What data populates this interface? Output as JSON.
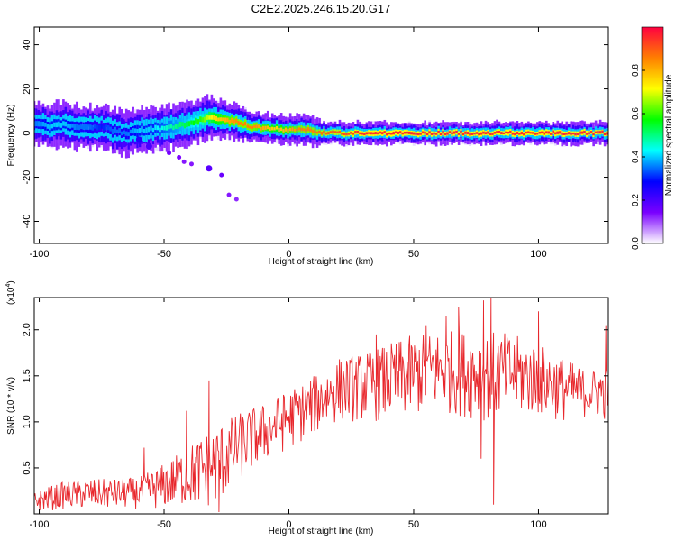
{
  "title": "C2E2.2025.246.15.20.G17",
  "chart_data": [
    {
      "type": "heatmap",
      "name": "spectrogram",
      "xlabel": "Height of straight line (km)",
      "ylabel": "Frequency (Hz)",
      "xlim": [
        -102,
        128
      ],
      "ylim": [
        -50,
        48
      ],
      "xticks": [
        -100,
        -50,
        0,
        50,
        100
      ],
      "yticks": [
        -40,
        -20,
        0,
        20,
        40
      ],
      "xticklabels": [
        "-100",
        "-50",
        "0",
        "50",
        "100"
      ],
      "yticklabels": [
        "-40",
        "-20",
        "0",
        "20",
        "40"
      ],
      "ridge": {
        "x": [
          -102,
          -95,
          -90,
          -85,
          -80,
          -75,
          -70,
          -65,
          -60,
          -55,
          -50,
          -45,
          -40,
          -35,
          -32,
          -30,
          -25,
          -20,
          -15,
          -10,
          -5,
          0,
          5,
          10,
          15,
          20,
          30,
          40,
          50,
          60,
          70,
          80,
          90,
          100,
          110,
          120,
          128
        ],
        "freq_hz": [
          4,
          3,
          4,
          3,
          2,
          3,
          1,
          0,
          1,
          2,
          2,
          3,
          4,
          6,
          7,
          7,
          6,
          5,
          3,
          2,
          2,
          1,
          2,
          1,
          0,
          0,
          0,
          0,
          0,
          0,
          0,
          0,
          0,
          0,
          0,
          0,
          0
        ],
        "width_hz": [
          6,
          6,
          6,
          6,
          6,
          6,
          6,
          6,
          6,
          6,
          6,
          6,
          6,
          6,
          6,
          6,
          5,
          5,
          4,
          4,
          4,
          4,
          4,
          4,
          3,
          3,
          3,
          3,
          3,
          3,
          3,
          3,
          3,
          3,
          3,
          3,
          3
        ],
        "amplitude": [
          0.35,
          0.4,
          0.4,
          0.35,
          0.35,
          0.3,
          0.35,
          0.35,
          0.4,
          0.4,
          0.45,
          0.5,
          0.55,
          0.6,
          0.7,
          0.75,
          0.8,
          0.85,
          0.85,
          0.8,
          0.75,
          0.8,
          0.85,
          0.85,
          0.9,
          0.9,
          0.95,
          0.95,
          0.95,
          0.95,
          0.95,
          0.95,
          0.95,
          0.95,
          0.95,
          0.95,
          0.95
        ]
      },
      "isolated_points": [
        {
          "x": -66,
          "freq_hz": -5,
          "amplitude": 0.1
        },
        {
          "x": -60,
          "freq_hz": -3,
          "amplitude": 0.15
        },
        {
          "x": -56,
          "freq_hz": -6,
          "amplitude": 0.1
        },
        {
          "x": -48,
          "freq_hz": -9,
          "amplitude": 0.05
        },
        {
          "x": -44,
          "freq_hz": -11,
          "amplitude": 0.04
        },
        {
          "x": -42,
          "freq_hz": -13,
          "amplitude": 0.03
        },
        {
          "x": -39,
          "freq_hz": -14,
          "amplitude": 0.03
        },
        {
          "x": -32,
          "freq_hz": -16,
          "amplitude": 0.08
        },
        {
          "x": -27,
          "freq_hz": -19,
          "amplitude": 0.06
        },
        {
          "x": -24,
          "freq_hz": -28,
          "amplitude": 0.03
        },
        {
          "x": -21,
          "freq_hz": -30,
          "amplitude": 0.02
        }
      ]
    },
    {
      "type": "line",
      "name": "snr",
      "xlabel": "Height of straight line (km)",
      "ylabel": "SNR (10 * v/v)",
      "y_multiplier_label": "(x10",
      "y_multiplier_exp": "4",
      "y_multiplier_close": ")",
      "xlim": [
        -102,
        128
      ],
      "ylim": [
        0,
        2.35
      ],
      "xticks": [
        -100,
        -50,
        0,
        50,
        100
      ],
      "yticks": [
        0.5,
        1.0,
        1.5,
        2.0
      ],
      "xticklabels": [
        "-100",
        "-50",
        "0",
        "50",
        "100"
      ],
      "yticklabels": [
        "0.5",
        "1.0",
        "1.5",
        "2.0"
      ],
      "color": "#e8272c",
      "envelope": {
        "x": [
          -102,
          -90,
          -80,
          -70,
          -60,
          -50,
          -40,
          -30,
          -20,
          -10,
          0,
          10,
          20,
          30,
          40,
          50,
          60,
          70,
          80,
          90,
          100,
          110,
          120,
          128
        ],
        "low": [
          0.02,
          0.05,
          0.05,
          0.05,
          0.05,
          0.05,
          0.08,
          0.05,
          0.35,
          0.55,
          0.7,
          0.85,
          1.0,
          1.0,
          1.0,
          1.05,
          1.1,
          1.05,
          1.0,
          1.05,
          1.05,
          1.0,
          1.05,
          1.0
        ],
        "high": [
          0.25,
          0.35,
          0.38,
          0.38,
          0.4,
          0.55,
          0.75,
          0.95,
          1.1,
          1.2,
          1.35,
          1.5,
          1.7,
          1.75,
          1.85,
          1.95,
          2.0,
          2.0,
          2.0,
          1.95,
          1.85,
          1.7,
          1.55,
          1.65
        ]
      },
      "spikes": [
        {
          "x": -32,
          "y": 1.45
        },
        {
          "x": -41,
          "y": 1.12
        },
        {
          "x": -58,
          "y": 0.72
        },
        {
          "x": -28,
          "y": 0.02
        },
        {
          "x": 35,
          "y": 1.95
        },
        {
          "x": 55,
          "y": 2.05
        },
        {
          "x": 63,
          "y": 2.15
        },
        {
          "x": 68,
          "y": 2.25
        },
        {
          "x": 78,
          "y": 2.32
        },
        {
          "x": 81,
          "y": 2.4
        },
        {
          "x": 82,
          "y": 0.1
        },
        {
          "x": 100,
          "y": 2.2
        },
        {
          "x": 77,
          "y": 0.6
        },
        {
          "x": 127,
          "y": 2.05
        }
      ]
    }
  ],
  "colorbar": {
    "label": "Normalized spectral amplitude",
    "ticks": [
      0.0,
      0.2,
      0.4,
      0.6,
      0.8
    ],
    "ticklabels": [
      "0.0",
      "0.2",
      "0.4",
      "0.6",
      "0.8"
    ],
    "range": [
      0,
      1
    ],
    "colors": [
      "#ffffff",
      "#7a00ff",
      "#0000ff",
      "#00ffff",
      "#00ff00",
      "#ffff00",
      "#ff7f00",
      "#ff0040"
    ]
  }
}
